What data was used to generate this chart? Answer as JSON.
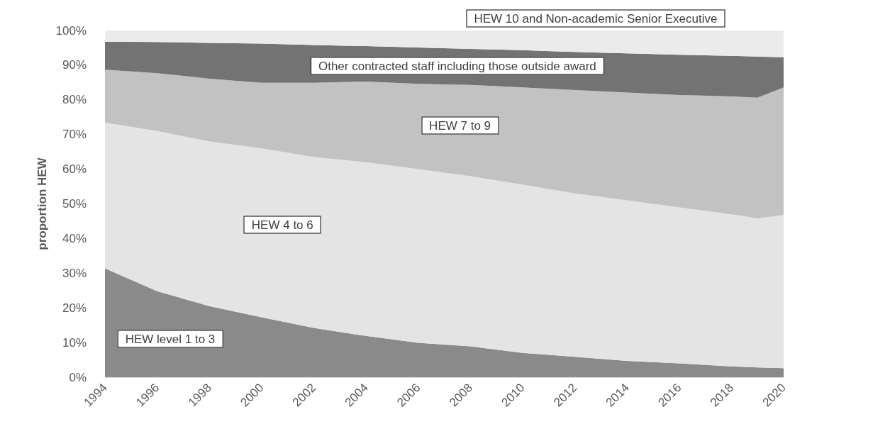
{
  "chart_data": {
    "type": "area",
    "stacked": true,
    "ylabel": "proportion HEW",
    "x": [
      1994,
      1996,
      1998,
      2000,
      2002,
      2004,
      2006,
      2008,
      2010,
      2012,
      2014,
      2016,
      2018,
      2019,
      2020
    ],
    "xlim": [
      1994,
      2020
    ],
    "xticks": [
      1994,
      1996,
      1998,
      2000,
      2002,
      2004,
      2006,
      2008,
      2010,
      2012,
      2014,
      2016,
      2018,
      2020
    ],
    "ylim": [
      0,
      100
    ],
    "yticks": [
      {
        "value": 0,
        "label": "0%"
      },
      {
        "value": 10,
        "label": "10%"
      },
      {
        "value": 20,
        "label": "20%"
      },
      {
        "value": 30,
        "label": "30%"
      },
      {
        "value": 40,
        "label": "40%"
      },
      {
        "value": 50,
        "label": "50%"
      },
      {
        "value": 60,
        "label": "60%"
      },
      {
        "value": 70,
        "label": "70%"
      },
      {
        "value": 80,
        "label": "80%"
      },
      {
        "value": 90,
        "label": "90%"
      },
      {
        "value": 100,
        "label": "100%"
      }
    ],
    "grid": "y",
    "legend": false,
    "series": [
      {
        "name": "HEW level 1 to 3",
        "color": "#8a8a8a",
        "values": [
          31.4,
          24.8,
          20.5,
          17.3,
          14.2,
          11.9,
          9.9,
          8.9,
          7.0,
          5.9,
          4.7,
          4.0,
          3.1,
          2.8,
          2.6
        ]
      },
      {
        "name": "HEW 4 to 6",
        "color": "#e4e4e4",
        "values": [
          42.0,
          46.2,
          47.5,
          48.7,
          49.3,
          50.1,
          50.1,
          49.1,
          48.5,
          47.1,
          46.3,
          45.0,
          43.9,
          43.0,
          44.2
        ]
      },
      {
        "name": "HEW 7 to 9",
        "color": "#c2c2c2",
        "values": [
          15.3,
          16.7,
          18.1,
          18.9,
          21.4,
          23.3,
          24.6,
          26.3,
          28.1,
          29.8,
          31.1,
          32.4,
          34.0,
          34.8,
          36.8
        ]
      },
      {
        "name": "Other contracted staff including those outside award",
        "color": "#737373",
        "values": [
          8.1,
          9.0,
          10.3,
          11.3,
          10.9,
          10.2,
          10.5,
          10.4,
          10.7,
          11.0,
          11.3,
          11.6,
          11.7,
          11.9,
          8.7
        ]
      },
      {
        "name": "HEW 10 and Non-academic Senior Executive",
        "color": "#ebebeb",
        "values": [
          3.2,
          3.3,
          3.6,
          3.8,
          4.2,
          4.5,
          4.9,
          5.3,
          5.7,
          6.2,
          6.6,
          7.0,
          7.3,
          7.5,
          7.7
        ]
      }
    ]
  }
}
